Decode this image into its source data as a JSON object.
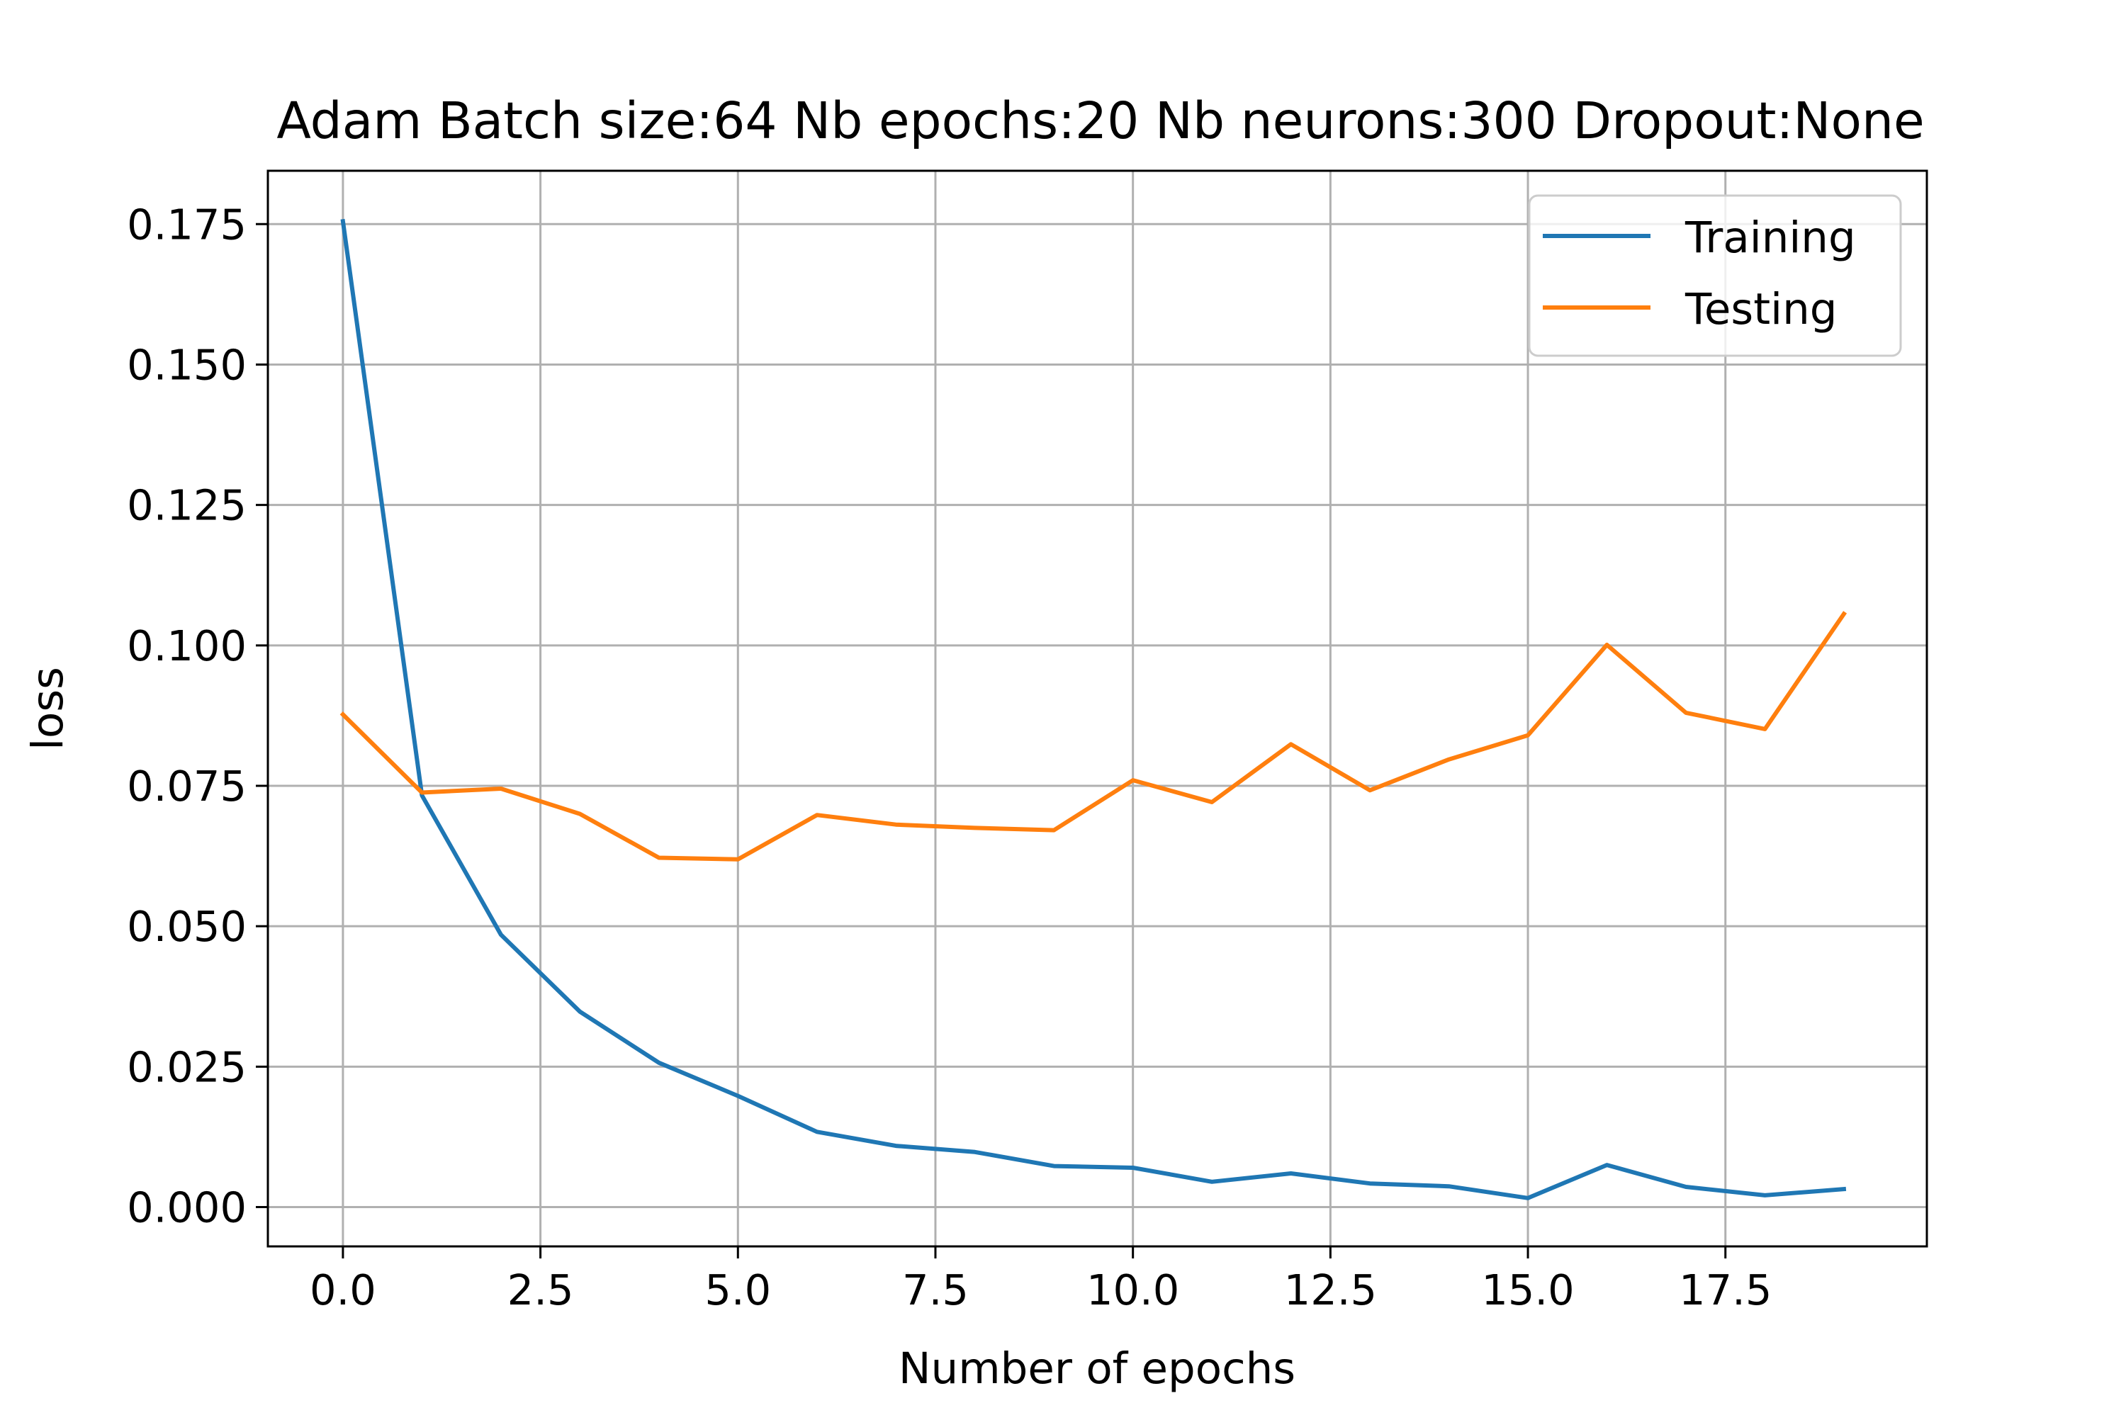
{
  "chart_data": {
    "type": "line",
    "title": "Adam Batch size:64 Nb epochs:20 Nb neurons:300 Dropout:None",
    "xlabel": "Number of epochs",
    "ylabel": "loss",
    "xlim": [
      -0.95,
      20.05
    ],
    "ylim": [
      -0.007,
      0.1845
    ],
    "grid": true,
    "legend_position": "upper right",
    "x_ticks": [
      {
        "value": 0.0,
        "label": "0.0"
      },
      {
        "value": 2.5,
        "label": "2.5"
      },
      {
        "value": 5.0,
        "label": "5.0"
      },
      {
        "value": 7.5,
        "label": "7.5"
      },
      {
        "value": 10.0,
        "label": "10.0"
      },
      {
        "value": 12.5,
        "label": "12.5"
      },
      {
        "value": 15.0,
        "label": "15.0"
      },
      {
        "value": 17.5,
        "label": "17.5"
      }
    ],
    "y_ticks": [
      {
        "value": 0.0,
        "label": "0.000"
      },
      {
        "value": 0.025,
        "label": "0.025"
      },
      {
        "value": 0.05,
        "label": "0.050"
      },
      {
        "value": 0.075,
        "label": "0.075"
      },
      {
        "value": 0.1,
        "label": "0.100"
      },
      {
        "value": 0.125,
        "label": "0.125"
      },
      {
        "value": 0.15,
        "label": "0.150"
      },
      {
        "value": 0.175,
        "label": "0.175"
      }
    ],
    "x": [
      0,
      1,
      2,
      3,
      4,
      5,
      6,
      7,
      8,
      9,
      10,
      11,
      12,
      13,
      14,
      15,
      16,
      17,
      18,
      19
    ],
    "series": [
      {
        "name": "Training",
        "color": "#1f77b4",
        "values": [
          0.1755,
          0.0733,
          0.0485,
          0.0348,
          0.0257,
          0.0198,
          0.0134,
          0.0109,
          0.0098,
          0.0073,
          0.007,
          0.0045,
          0.006,
          0.0042,
          0.0037,
          0.0016,
          0.0075,
          0.0036,
          0.0021,
          0.0032
        ]
      },
      {
        "name": "Testing",
        "color": "#ff7f0e",
        "values": [
          0.0877,
          0.0738,
          0.0745,
          0.07,
          0.0622,
          0.0619,
          0.0698,
          0.0681,
          0.0675,
          0.0671,
          0.076,
          0.0721,
          0.0824,
          0.0742,
          0.0797,
          0.084,
          0.1001,
          0.088,
          0.0851,
          0.1056
        ]
      }
    ]
  }
}
